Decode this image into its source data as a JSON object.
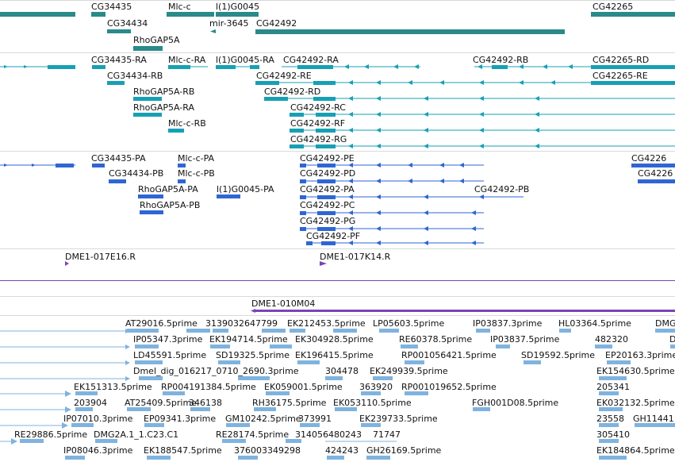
{
  "tracks": {
    "genes": {
      "labels": [
        "CG34435",
        "Mlc-c",
        "l(1)G0045",
        "CG42265",
        "CG34434",
        "mir-3645",
        "CG42492",
        "RhoGAP5A"
      ],
      "color": "#2a8a8a"
    },
    "transcripts": {
      "labels": [
        "CG34435-RA",
        "Mlc-c-RA",
        "l(1)G0045-RA",
        "CG42492-RA",
        "CG42492-RB",
        "CG42265-RD",
        "CG34434-RB",
        "CG42492-RE",
        "CG42265-RE",
        "RhoGAP5A-RB",
        "CG42492-RD",
        "RhoGAP5A-RA",
        "CG42492-RC",
        "Mlc-c-RB",
        "CG42492-RF",
        "CG42492-RG"
      ],
      "color": "#17a0b4"
    },
    "proteins": {
      "labels": [
        "CG34435-PA",
        "Mlc-c-PA",
        "CG42492-PE",
        "CG4226",
        "CG34434-PB",
        "Mlc-c-PB",
        "CG42492-PD",
        "CG4226",
        "RhoGAP5A-PA",
        "l(1)G0045-PA",
        "CG42492-PA",
        "CG42492-PB",
        "RhoGAP5A-PB",
        "CG42492-PC",
        "CG42492-PG",
        "CG42492-PF"
      ],
      "color": "#2f66d3"
    },
    "clones": {
      "labels": [
        "DME1-017E16.R",
        "DME1-017K14.R",
        "DME1-010M04"
      ],
      "color": "#7a44b8"
    },
    "ests": {
      "labels": [
        "AT29016.5prime",
        "3139032647799",
        "EK212453.5prime",
        "LP05603.5prime",
        "IP03837.3prime",
        "HL03364.5prime",
        "DMG",
        "IP05347.3prime",
        "EK194714.5prime",
        "EK304928.5prime",
        "RE60378.5prime",
        "IP03837.5prime",
        "482320",
        "D",
        "LD45591.5prime",
        "SD19325.5prime",
        "EK196415.5prime",
        "RP001056421.5prime",
        "SD19592.5prime",
        "EP20163.3prime",
        "Dmel_dig_016217_0710_2690.3prime",
        "304478",
        "EK249939.5prime",
        "EK154630.5prime",
        "EK151313.5prime",
        "RP004191384.5prime",
        "EK059001.5prime",
        "363920",
        "RP001019652.5prime",
        "205341",
        "203904",
        "AT25409.5prime",
        "346138",
        "RH36175.5prime",
        "EK053110.5prime",
        "FGH001D08.5prime",
        "EK032132.5prime",
        "IP07010.3prime",
        "EP09341.3prime",
        "GM10242.5prime",
        "373991",
        "EK239733.5prime",
        "23558",
        "GH11441",
        "RE29886.5prime",
        "DMG2A.1_1.C23.C1",
        "RE28174.5prime",
        "314056480243",
        "71747",
        "305410",
        "IP08046.3prime",
        "EK188547.5prime",
        "376003349298",
        "424243",
        "GH26169.5prime",
        "EK184864.5prime"
      ],
      "color": "#7fb3df"
    }
  }
}
